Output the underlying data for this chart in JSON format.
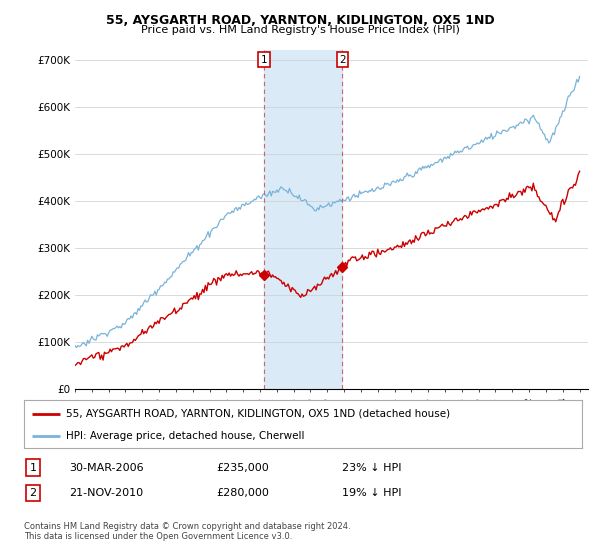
{
  "title": "55, AYSGARTH ROAD, YARNTON, KIDLINGTON, OX5 1ND",
  "subtitle": "Price paid vs. HM Land Registry's House Price Index (HPI)",
  "ylim": [
    0,
    720000
  ],
  "yticks": [
    0,
    100000,
    200000,
    300000,
    400000,
    500000,
    600000,
    700000
  ],
  "ytick_labels": [
    "£0",
    "£100K",
    "£200K",
    "£300K",
    "£400K",
    "£500K",
    "£600K",
    "£700K"
  ],
  "sale1_year": 2006.24,
  "sale1_price": 235000,
  "sale2_year": 2010.9,
  "sale2_price": 280000,
  "hpi_color": "#7ab3d9",
  "price_color": "#cc0000",
  "shade_color": "#daeaf7",
  "vline_color": "#cc6666",
  "legend_line1": "55, AYSGARTH ROAD, YARNTON, KIDLINGTON, OX5 1ND (detached house)",
  "legend_line2": "HPI: Average price, detached house, Cherwell",
  "table_row1": [
    "1",
    "30-MAR-2006",
    "£235,000",
    "23% ↓ HPI"
  ],
  "table_row2": [
    "2",
    "21-NOV-2010",
    "£280,000",
    "19% ↓ HPI"
  ],
  "footnote": "Contains HM Land Registry data © Crown copyright and database right 2024.\nThis data is licensed under the Open Government Licence v3.0.",
  "background_color": "#ffffff"
}
